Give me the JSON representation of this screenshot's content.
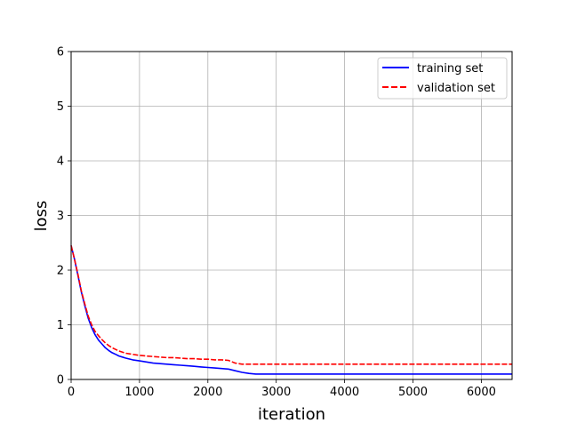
{
  "chart_data": {
    "type": "line",
    "title": "",
    "xlabel": "iteration",
    "ylabel": "loss",
    "xlim": [
      0,
      6450
    ],
    "ylim": [
      0,
      6
    ],
    "grid": true,
    "legend_placement": "top-right",
    "x_ticks": [
      0,
      1000,
      2000,
      3000,
      4000,
      5000,
      6000
    ],
    "y_ticks": [
      0,
      1,
      2,
      3,
      4,
      5,
      6
    ],
    "series": [
      {
        "name": "training set",
        "color": "#0000ff",
        "style": "solid",
        "x": [
          0,
          50,
          100,
          150,
          200,
          250,
          300,
          350,
          400,
          450,
          500,
          550,
          600,
          650,
          700,
          750,
          800,
          900,
          1000,
          1100,
          1200,
          1300,
          1400,
          1500,
          1600,
          1700,
          1800,
          1900,
          2000,
          2100,
          2200,
          2300,
          2400,
          2500,
          2600,
          2700,
          2800,
          3000,
          3500,
          4000,
          4500,
          5000,
          5500,
          6000,
          6450
        ],
        "y": [
          2.45,
          2.2,
          1.9,
          1.6,
          1.35,
          1.12,
          0.95,
          0.82,
          0.72,
          0.65,
          0.58,
          0.53,
          0.49,
          0.46,
          0.43,
          0.41,
          0.39,
          0.36,
          0.34,
          0.32,
          0.3,
          0.29,
          0.28,
          0.27,
          0.26,
          0.25,
          0.24,
          0.23,
          0.22,
          0.21,
          0.2,
          0.19,
          0.16,
          0.13,
          0.11,
          0.1,
          0.1,
          0.1,
          0.1,
          0.1,
          0.1,
          0.1,
          0.1,
          0.1,
          0.1
        ]
      },
      {
        "name": "validation set",
        "color": "#ff0000",
        "style": "dashed",
        "x": [
          0,
          50,
          100,
          150,
          200,
          250,
          300,
          350,
          400,
          450,
          500,
          550,
          600,
          650,
          700,
          750,
          800,
          900,
          1000,
          1100,
          1200,
          1300,
          1400,
          1500,
          1600,
          1700,
          1800,
          1900,
          2000,
          2100,
          2200,
          2300,
          2400,
          2500,
          2600,
          2700,
          2800,
          3000,
          3500,
          4000,
          4500,
          5000,
          5500,
          6000,
          6450
        ],
        "y": [
          2.45,
          2.2,
          1.92,
          1.62,
          1.38,
          1.16,
          1.0,
          0.88,
          0.8,
          0.73,
          0.67,
          0.62,
          0.58,
          0.55,
          0.52,
          0.5,
          0.48,
          0.46,
          0.44,
          0.43,
          0.42,
          0.41,
          0.4,
          0.4,
          0.39,
          0.38,
          0.38,
          0.37,
          0.37,
          0.36,
          0.36,
          0.35,
          0.3,
          0.28,
          0.28,
          0.28,
          0.28,
          0.28,
          0.28,
          0.28,
          0.28,
          0.28,
          0.28,
          0.28,
          0.28
        ]
      }
    ]
  }
}
